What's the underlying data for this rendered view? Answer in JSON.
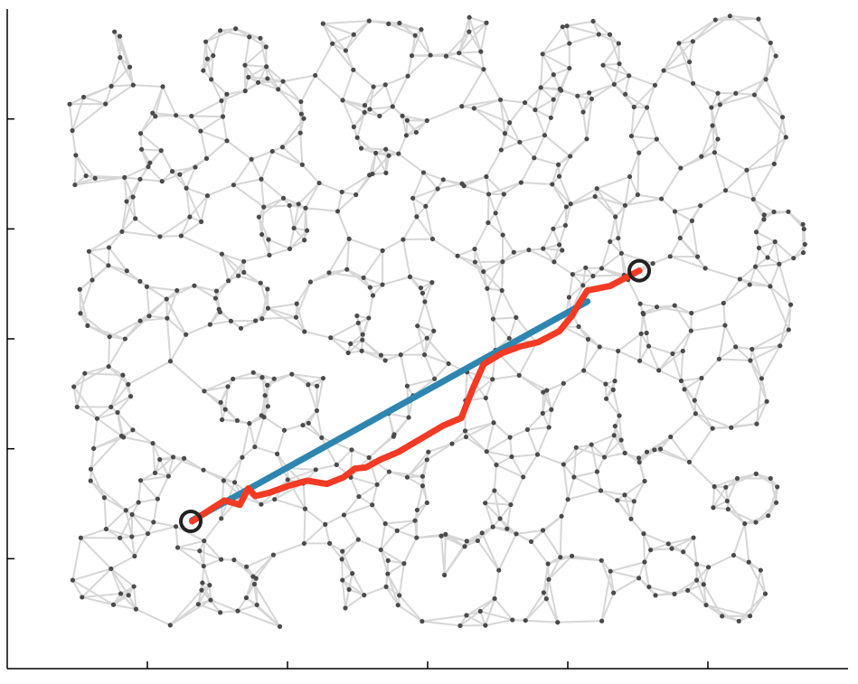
{
  "chart_data": {
    "type": "line",
    "xlim": [
      0,
      6
    ],
    "ylim": [
      0,
      6
    ],
    "xticks": [
      1,
      2,
      3,
      4,
      5
    ],
    "yticks": [
      1,
      2,
      3,
      4,
      5
    ],
    "series": [
      {
        "color": "#2e86b0",
        "x": [
          1.32,
          4.14
        ],
        "y": [
          1.35,
          3.34
        ]
      },
      {
        "color": "#f23a24",
        "x": [
          1.32,
          1.55,
          1.66,
          1.72,
          1.77,
          1.87,
          2.0,
          2.14,
          2.28,
          2.4,
          2.48,
          2.56,
          2.66,
          2.79,
          2.95,
          3.11,
          3.24,
          3.32,
          3.4,
          3.53,
          3.66,
          3.79,
          3.94,
          4.03,
          4.08,
          4.14,
          4.3,
          4.51
        ],
        "y": [
          1.34,
          1.53,
          1.49,
          1.64,
          1.57,
          1.6,
          1.66,
          1.71,
          1.68,
          1.74,
          1.82,
          1.83,
          1.9,
          1.97,
          2.09,
          2.21,
          2.28,
          2.54,
          2.77,
          2.87,
          2.93,
          2.97,
          3.07,
          3.21,
          3.32,
          3.44,
          3.48,
          3.62
        ]
      }
    ],
    "markers": {
      "color": "#222222",
      "x": [
        1.31,
        4.51
      ],
      "y": [
        1.34,
        3.62
      ]
    }
  }
}
